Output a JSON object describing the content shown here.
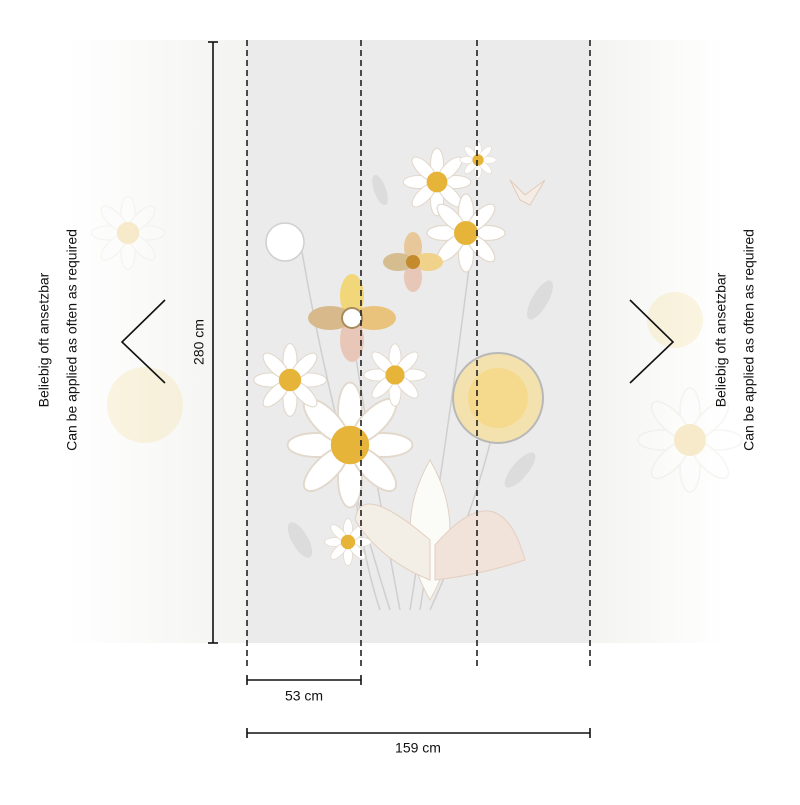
{
  "side_note": {
    "lines": [
      "Beliebig oft ansetzbar",
      "Can be applied as often as required"
    ]
  },
  "dimensions": {
    "height": "280 cm",
    "strip_width": "53 cm",
    "total_width": "159 cm"
  }
}
